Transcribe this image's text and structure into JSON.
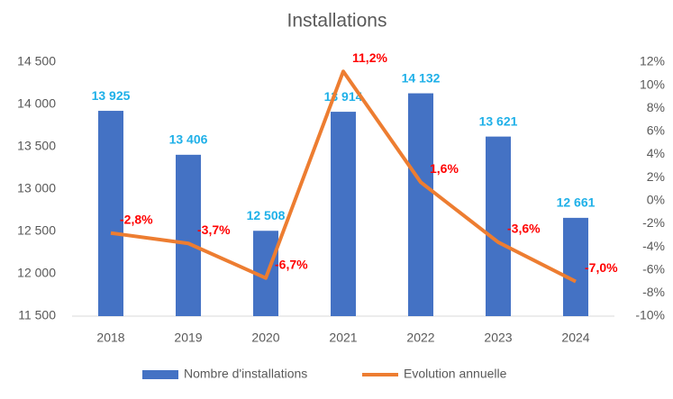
{
  "chart_data": {
    "type": "bar",
    "title": "Installations",
    "categories": [
      "2018",
      "2019",
      "2020",
      "2021",
      "2022",
      "2023",
      "2024"
    ],
    "series": [
      {
        "name": "Nombre d'installations",
        "type": "bar",
        "color": "#4472c4",
        "values": [
          13925,
          13406,
          12508,
          13914,
          14132,
          13621,
          12661
        ],
        "value_labels": [
          "13 925",
          "13 406",
          "12 508",
          "13 914",
          "14 132",
          "13 621",
          "12 661"
        ]
      },
      {
        "name": "Evolution annuelle",
        "type": "line",
        "axis": "y2",
        "color": "#ed7d31",
        "values": [
          -2.8,
          -3.7,
          -6.7,
          11.2,
          1.6,
          -3.6,
          -7.0
        ],
        "value_labels": [
          "-2,8%",
          "-3,7%",
          "-6,7%",
          "11,2%",
          "1,6%",
          "-3,6%",
          "-7,0%"
        ]
      }
    ],
    "ylim": [
      11500,
      14500
    ],
    "yticks": [
      {
        "value": 11500,
        "label": "11 500"
      },
      {
        "value": 12000,
        "label": "12 000"
      },
      {
        "value": 12500,
        "label": "12 500"
      },
      {
        "value": 13000,
        "label": "13 000"
      },
      {
        "value": 13500,
        "label": "13 500"
      },
      {
        "value": 14000,
        "label": "14 000"
      },
      {
        "value": 14500,
        "label": "14 500"
      }
    ],
    "y2lim": [
      -10,
      12
    ],
    "y2ticks": [
      {
        "value": -10,
        "label": "-10%"
      },
      {
        "value": -8,
        "label": "-8%"
      },
      {
        "value": -6,
        "label": "-6%"
      },
      {
        "value": -4,
        "label": "-4%"
      },
      {
        "value": -2,
        "label": "-2%"
      },
      {
        "value": 0,
        "label": "0%"
      },
      {
        "value": 2,
        "label": "2%"
      },
      {
        "value": 4,
        "label": "4%"
      },
      {
        "value": 6,
        "label": "6%"
      },
      {
        "value": 8,
        "label": "8%"
      },
      {
        "value": 10,
        "label": "10%"
      },
      {
        "value": 12,
        "label": "12%"
      }
    ],
    "grid": false
  }
}
